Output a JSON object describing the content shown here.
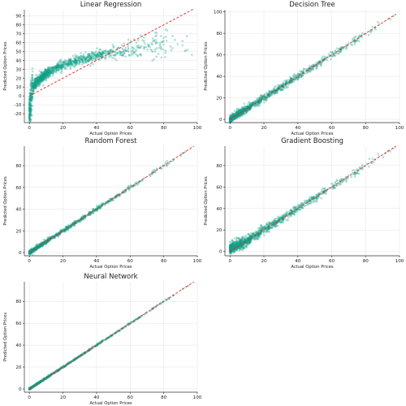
{
  "colors": {
    "points": "#12a38a",
    "reference_line": "#e8251c",
    "grid": "#e3e3e3"
  },
  "chart_data": [
    {
      "type": "scatter",
      "title": "Linear Regression",
      "xlabel": "Actual Option Prices",
      "ylabel": "Predicted Option Prices",
      "xlim": [
        -3,
        100
      ],
      "ylim": [
        -30,
        97
      ],
      "xticks": [
        0,
        20,
        40,
        60,
        80,
        100
      ],
      "yticks": [
        -20,
        -10,
        0,
        10,
        20,
        30,
        40,
        50,
        60,
        70,
        80,
        90
      ],
      "reference_line": [
        [
          0,
          0
        ],
        [
          98,
          98
        ]
      ],
      "grid": true,
      "samples": [
        [
          0.3,
          -25
        ],
        [
          0.5,
          -15
        ],
        [
          0.8,
          -8
        ],
        [
          1,
          -2
        ],
        [
          1.5,
          3
        ],
        [
          2,
          7
        ],
        [
          3,
          10
        ],
        [
          5,
          13
        ],
        [
          8,
          17
        ],
        [
          10,
          19
        ],
        [
          15,
          23
        ],
        [
          20,
          27
        ],
        [
          25,
          31
        ],
        [
          30,
          34
        ],
        [
          35,
          37
        ],
        [
          40,
          41
        ],
        [
          45,
          43
        ],
        [
          50,
          46
        ],
        [
          55,
          50
        ],
        [
          60,
          53
        ],
        [
          65,
          56
        ],
        [
          70,
          58
        ],
        [
          75,
          61
        ],
        [
          80,
          63
        ],
        [
          85,
          64
        ],
        [
          90,
          66
        ],
        [
          95,
          68
        ]
      ]
    },
    {
      "type": "scatter",
      "title": "Decision Tree",
      "xlabel": "Actual Option Prices",
      "ylabel": "Predicted Option Prices",
      "xlim": [
        -3,
        100
      ],
      "ylim": [
        -3,
        102
      ],
      "xticks": [
        0,
        20,
        40,
        60,
        80,
        100
      ],
      "yticks": [
        0,
        20,
        40,
        60,
        80,
        100
      ],
      "reference_line": [
        [
          0,
          0
        ],
        [
          98,
          98
        ]
      ],
      "grid": true,
      "samples": [
        [
          0,
          0
        ],
        [
          10,
          10
        ],
        [
          20,
          20
        ],
        [
          30,
          30
        ],
        [
          40,
          40
        ],
        [
          50,
          50
        ],
        [
          60,
          60
        ],
        [
          70,
          70
        ],
        [
          80,
          80
        ],
        [
          90,
          90
        ],
        [
          97,
          96
        ]
      ]
    },
    {
      "type": "scatter",
      "title": "Random Forest",
      "xlabel": "Actual Option Prices",
      "ylabel": "Predicted Option Prices",
      "xlim": [
        -3,
        100
      ],
      "ylim": [
        -3,
        98
      ],
      "xticks": [
        0,
        20,
        40,
        60,
        80,
        100
      ],
      "yticks": [
        0,
        20,
        40,
        60,
        80
      ],
      "reference_line": [
        [
          0,
          0
        ],
        [
          98,
          98
        ]
      ],
      "grid": true,
      "samples": [
        [
          0,
          0
        ],
        [
          10,
          10
        ],
        [
          20,
          20
        ],
        [
          30,
          30
        ],
        [
          40,
          40
        ],
        [
          50,
          50
        ],
        [
          60,
          60
        ],
        [
          70,
          70
        ],
        [
          80,
          80
        ],
        [
          90,
          90
        ],
        [
          96,
          95
        ]
      ]
    },
    {
      "type": "scatter",
      "title": "Gradient Boosting",
      "xlabel": "Actual Option Prices",
      "ylabel": "Predicted Option Prices",
      "xlim": [
        -3,
        100
      ],
      "ylim": [
        -4,
        98
      ],
      "xticks": [
        0,
        20,
        40,
        60,
        80,
        100
      ],
      "yticks": [
        0,
        20,
        40,
        60,
        80
      ],
      "reference_line": [
        [
          0,
          0
        ],
        [
          98,
          98
        ]
      ],
      "grid": true,
      "samples": [
        [
          0,
          1
        ],
        [
          5,
          6
        ],
        [
          10,
          11
        ],
        [
          20,
          20
        ],
        [
          30,
          30
        ],
        [
          40,
          40
        ],
        [
          50,
          50
        ],
        [
          60,
          60
        ],
        [
          70,
          70
        ],
        [
          80,
          80
        ],
        [
          90,
          89
        ],
        [
          96,
          94
        ]
      ]
    },
    {
      "type": "scatter",
      "title": "Neural Network",
      "xlabel": "Actual Option Prices",
      "ylabel": "Predicted Option Prices",
      "xlim": [
        -3,
        100
      ],
      "ylim": [
        -3,
        98
      ],
      "xticks": [
        0,
        20,
        40,
        60,
        80,
        100
      ],
      "yticks": [
        0,
        20,
        40,
        60,
        80
      ],
      "reference_line": [
        [
          0,
          0
        ],
        [
          98,
          98
        ]
      ],
      "grid": true,
      "samples": [
        [
          0,
          0
        ],
        [
          10,
          10
        ],
        [
          20,
          20
        ],
        [
          30,
          30
        ],
        [
          40,
          40
        ],
        [
          50,
          50
        ],
        [
          60,
          60
        ],
        [
          70,
          70
        ],
        [
          80,
          80
        ],
        [
          90,
          90
        ],
        [
          97,
          97
        ]
      ]
    }
  ]
}
